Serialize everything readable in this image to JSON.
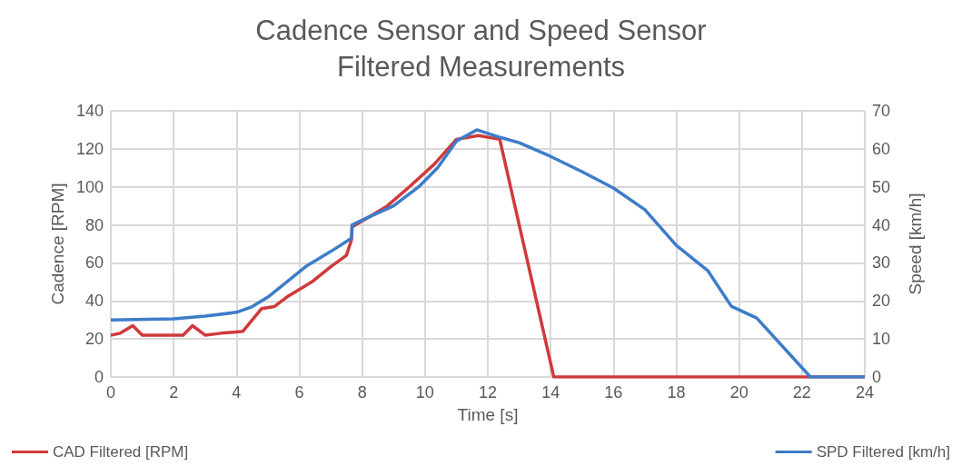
{
  "chart_data": {
    "type": "line",
    "title": "Cadence Sensor and Speed Sensor\nFiltered Measurements",
    "xlabel": "Time [s]",
    "ylabel": "Cadence [RPM]",
    "y2label": "Speed [km/h]",
    "xlim": [
      0,
      24
    ],
    "xticks": [
      0,
      2,
      4,
      6,
      8,
      10,
      12,
      14,
      16,
      18,
      20,
      22,
      24
    ],
    "ylim": [
      0,
      140
    ],
    "yticks": [
      0,
      20,
      40,
      60,
      80,
      100,
      120,
      140
    ],
    "y2lim": [
      0,
      70
    ],
    "y2ticks": [
      0,
      10,
      20,
      30,
      40,
      50,
      60,
      70
    ],
    "grid": true,
    "legend": "bottom",
    "marker": "none",
    "line_style": "solid",
    "series": [
      {
        "name": "CAD Filtered [RPM]",
        "color": "#d0393b",
        "x": [
          0,
          0.3,
          0.7,
          1.0,
          2.0,
          2.3,
          2.6,
          3.0,
          3.5,
          4.2,
          4.8,
          5.2,
          5.6,
          6.2,
          6.4,
          7.0,
          7.5,
          7.66,
          7.68,
          8.2,
          8.8,
          9.5,
          10.3,
          11.0,
          11.7,
          12.38,
          14.1,
          24
        ],
        "values": [
          22,
          23,
          27,
          22,
          22,
          22,
          27,
          22,
          23,
          24,
          36,
          37,
          42,
          48,
          50,
          58,
          64,
          72,
          79,
          84,
          90,
          100,
          112,
          125,
          127,
          125,
          0,
          0
        ]
      },
      {
        "name": "SPD Filtered [km/h]",
        "color": "#3d7cc9",
        "axis": "y2",
        "x": [
          0,
          2,
          3,
          4,
          4.5,
          5,
          5.6,
          6.2,
          7,
          7.66,
          7.68,
          8.2,
          9,
          9.8,
          10.4,
          11,
          11.65,
          12.4,
          13,
          14,
          15,
          16,
          17,
          18,
          19,
          19.75,
          20.56,
          22.27,
          24
        ],
        "values": [
          15,
          15.3,
          16,
          17,
          18.5,
          21,
          25,
          29,
          33,
          36.5,
          40,
          42,
          45,
          50,
          55,
          62,
          65,
          63,
          61.6,
          58,
          54,
          49.7,
          44,
          34.6,
          28,
          18.6,
          15.5,
          0,
          0
        ]
      }
    ]
  }
}
